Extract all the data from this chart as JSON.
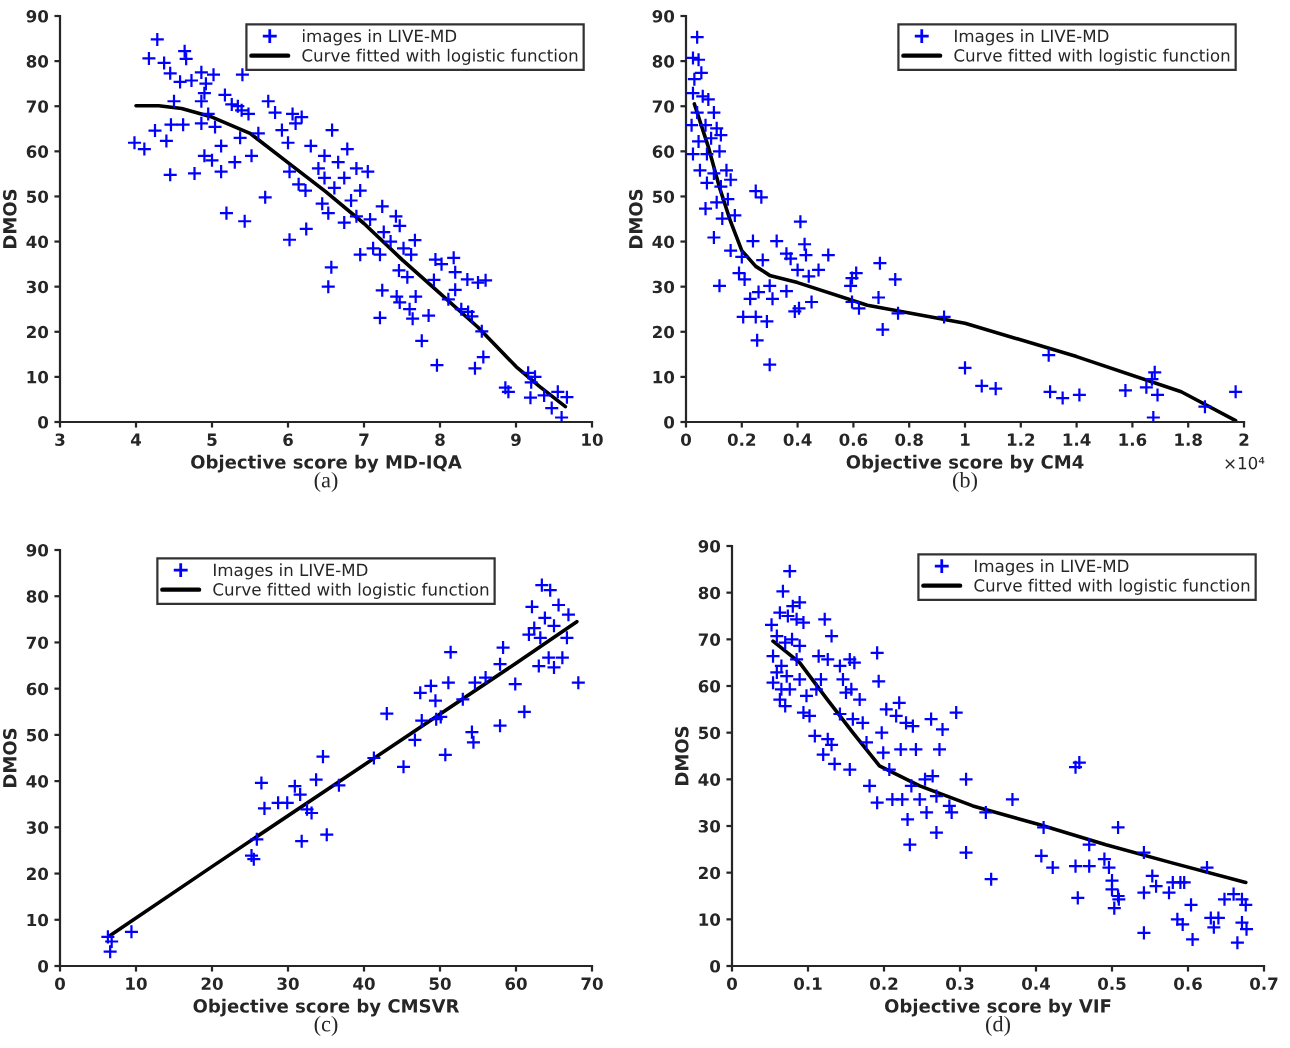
{
  "chart_data": [
    {
      "type": "scatter",
      "xlabel": "Objective score by MD-IQA",
      "ylabel": "DMOS",
      "xlim": [
        3,
        10
      ],
      "xticks": [
        3,
        4,
        5,
        6,
        7,
        8,
        9,
        10
      ],
      "ylim": [
        0,
        90
      ],
      "yticks": [
        0,
        10,
        20,
        30,
        40,
        50,
        60,
        70,
        80,
        90
      ],
      "legend": "top right",
      "grid": false,
      "annotations": [
        "(a)"
      ],
      "series": [
        {
          "name": "images in LIVE-MD",
          "color": "#0000ff",
          "marker": "cross",
          "x": [
            4.28,
            4.17,
            4.37,
            4.64,
            4.66,
            4.58,
            4.45,
            4.73,
            4.86,
            5.02,
            4.92,
            4.5,
            4.9,
            4.86,
            3.98,
            4.11,
            4.25,
            4.4,
            4.46,
            4.62,
            4.45,
            4.77,
            4.86,
            4.95,
            5.04,
            4.9,
            5.0,
            5.12,
            5.12,
            5.19,
            5.43,
            5.17,
            5.26,
            5.34,
            5.4,
            5.39,
            5.48,
            5.37,
            5.52,
            5.3,
            5.61,
            5.7,
            5.74,
            5.83,
            5.92,
            6.0,
            6.02,
            6.06,
            6.1,
            6.02,
            6.18,
            6.23,
            6.3,
            6.14,
            6.24,
            6.4,
            6.48,
            6.45,
            6.58,
            6.48,
            6.66,
            6.61,
            6.53,
            6.57,
            6.53,
            6.74,
            6.78,
            6.83,
            6.9,
            6.95,
            6.74,
            6.9,
            7.05,
            6.95,
            7.08,
            7.21,
            7.12,
            7.24,
            7.26,
            7.35,
            7.42,
            7.47,
            7.21,
            7.24,
            7.43,
            7.52,
            7.46,
            7.57,
            7.47,
            7.6,
            7.62,
            7.68,
            7.64,
            7.67,
            7.76,
            7.94,
            8.02,
            7.92,
            7.96,
            7.85,
            8.11,
            8.18,
            8.2,
            8.2,
            8.28,
            8.37,
            8.42,
            8.36,
            8.5,
            8.55,
            8.57,
            8.46,
            8.86,
            8.9,
            9.16,
            9.2,
            9.19,
            9.37,
            9.47,
            9.55,
            9.6,
            9.67,
            9.25,
            8.6
          ],
          "values": [
            84.8,
            80.6,
            79.6,
            82.2,
            80.5,
            75.4,
            77.3,
            75.7,
            77.5,
            77,
            75,
            71.1,
            72.9,
            71.1,
            61.9,
            60.5,
            64.6,
            62.3,
            65.9,
            65.9,
            54.8,
            55.1,
            66.2,
            68.3,
            65.4,
            59,
            58,
            55.5,
            61.2,
            46.3,
            44.5,
            72.5,
            70.4,
            70,
            77,
            69.1,
            68.3,
            63,
            59,
            57.6,
            64,
            49.8,
            71.1,
            68.6,
            64.7,
            61.9,
            40.4,
            68.3,
            66.2,
            55.5,
            67.6,
            51.3,
            61.2,
            52.7,
            42.8,
            56.2,
            54.1,
            48.4,
            64.7,
            59,
            57.6,
            51.9,
            46.3,
            34.3,
            30,
            54.1,
            60.5,
            49.1,
            56.2,
            51.3,
            44.2,
            45.6,
            55.5,
            37.1,
            44.9,
            37.1,
            38.5,
            47.8,
            42.1,
            40,
            45.6,
            43.5,
            23.1,
            29.2,
            27.8,
            38.5,
            33.6,
            32.1,
            26.5,
            25,
            37.1,
            27.8,
            22.9,
            40.3,
            18,
            36,
            35,
            31.5,
            12.6,
            23.6,
            27.2,
            36.4,
            33.2,
            29.3,
            25,
            24.4,
            23.4,
            31.6,
            30.9,
            20.1,
            14.4,
            11.9,
            7.6,
            6.7,
            10.9,
            8.8,
            5.4,
            5.9,
            3.1,
            6.7,
            1,
            5.5,
            10,
            31.4
          ]
        },
        {
          "type": "line",
          "name": "Curve fitted with logistic function",
          "color": "#000000",
          "marker": "none",
          "line_style": "solid",
          "x": [
            4.0,
            4.3,
            4.6,
            5.0,
            5.5,
            6.0,
            6.5,
            7.0,
            7.5,
            8.0,
            8.5,
            9.0,
            9.3,
            9.65
          ],
          "values": [
            70.1,
            70.1,
            69.5,
            67.6,
            64,
            57.5,
            51,
            44,
            36,
            28.5,
            21,
            12.3,
            8,
            3.4
          ]
        }
      ]
    },
    {
      "type": "scatter",
      "xlabel": "Objective score by CM4",
      "ylabel": "DMOS",
      "xlim": [
        0,
        2
      ],
      "xticks": [
        0,
        0.2,
        0.4,
        0.6,
        0.8,
        1,
        1.2,
        1.4,
        1.6,
        1.8,
        2
      ],
      "ylim": [
        0,
        90
      ],
      "yticks": [
        0,
        10,
        20,
        30,
        40,
        50,
        60,
        70,
        80,
        90
      ],
      "legend": "top right",
      "grid": false,
      "annotations": [
        "×10⁴",
        "(b)"
      ],
      "series": [
        {
          "name": "Images in LIVE-MD",
          "color": "#0000ff",
          "marker": "cross",
          "x": [
            0.04,
            0.025,
            0.045,
            0.03,
            0.055,
            0.025,
            0.06,
            0.08,
            0.04,
            0.1,
            0.02,
            0.07,
            0.11,
            0.045,
            0.09,
            0.125,
            0.025,
            0.075,
            0.12,
            0.05,
            0.1,
            0.145,
            0.075,
            0.125,
            0.16,
            0.07,
            0.11,
            0.15,
            0.1,
            0.13,
            0.175,
            0.16,
            0.12,
            0.2,
            0.19,
            0.21,
            0.205,
            0.25,
            0.23,
            0.26,
            0.3,
            0.25,
            0.27,
            0.24,
            0.275,
            0.255,
            0.3,
            0.29,
            0.31,
            0.325,
            0.36,
            0.375,
            0.36,
            0.39,
            0.405,
            0.41,
            0.425,
            0.43,
            0.44,
            0.45,
            0.4,
            0.475,
            0.51,
            0.59,
            0.595,
            0.61,
            0.595,
            0.62,
            0.695,
            0.69,
            0.705,
            0.75,
            0.76,
            0.925,
            1.0,
            1.06,
            1.11,
            1.3,
            1.305,
            1.35,
            1.41,
            1.575,
            1.65,
            1.67,
            1.68,
            1.675,
            1.69,
            1.86,
            1.97
          ],
          "values": [
            85.3,
            80.7,
            80.3,
            76,
            77.4,
            72.9,
            72.2,
            71.5,
            68.6,
            68.6,
            65.8,
            65.8,
            65.1,
            62.2,
            62.9,
            63.6,
            59.4,
            59.4,
            60,
            55.8,
            55.1,
            55.8,
            53,
            52.2,
            53.7,
            47.3,
            48.7,
            49.4,
            40.9,
            45.1,
            45.8,
            38,
            30.2,
            36.6,
            33,
            31.6,
            23.3,
            23.3,
            27.3,
            28.8,
            30.2,
            51.2,
            49.8,
            40.1,
            35.9,
            18.1,
            12.7,
            22.3,
            27.3,
            40.1,
            37.3,
            36.2,
            29,
            24.5,
            25.2,
            44.4,
            39.4,
            37,
            32.3,
            26.6,
            33.7,
            33.7,
            37,
            30.2,
            31.9,
            33,
            26.6,
            25.2,
            35.2,
            27.6,
            20.5,
            31.6,
            24.1,
            23.3,
            12,
            8,
            7.4,
            14.8,
            6.7,
            5.3,
            6,
            7,
            7.7,
            9.5,
            11,
            1,
            6,
            3.4,
            6.7
          ]
        },
        {
          "type": "line",
          "name": "Curve fitted with logistic function",
          "color": "#000000",
          "marker": "none",
          "line_style": "solid",
          "x": [
            0.03,
            0.08,
            0.12,
            0.16,
            0.2,
            0.25,
            0.3,
            0.4,
            0.65,
            1.0,
            1.4,
            1.775,
            1.97
          ],
          "values": [
            70.5,
            61,
            52,
            44.4,
            38,
            34.5,
            32.5,
            30.9,
            25.9,
            21.9,
            14.5,
            6.7,
            0.3
          ]
        }
      ]
    },
    {
      "type": "scatter",
      "xlabel": "Objective score by CMSVR",
      "ylabel": "DMOS",
      "xlim": [
        0,
        70
      ],
      "xticks": [
        0,
        10,
        20,
        30,
        40,
        50,
        60,
        70
      ],
      "ylim": [
        0,
        90
      ],
      "yticks": [
        0,
        10,
        20,
        30,
        40,
        50,
        60,
        70,
        80,
        90
      ],
      "legend": "top",
      "grid": false,
      "annotations": [
        "(c)"
      ],
      "series": [
        {
          "name": "Images in LIVE-MD",
          "color": "#0000ff",
          "marker": "cross",
          "x": [
            6.3,
            6.6,
            6.8,
            9.4,
            25.2,
            25.5,
            25.9,
            26.5,
            26.9,
            28.7,
            29.9,
            30.9,
            31.6,
            31.8,
            32.5,
            33.1,
            33.7,
            34.6,
            35.1,
            36.7,
            41.3,
            43,
            45.2,
            46.7,
            47.4,
            47.6,
            48.8,
            49.4,
            49.5,
            50.1,
            50.7,
            51.1,
            51.4,
            53,
            54.2,
            54.4,
            54.6,
            56,
            57.9,
            57.9,
            58.3,
            59.9,
            61.1,
            61.7,
            62.1,
            62.4,
            63,
            63.2,
            63.4,
            63.8,
            64.5,
            64.3,
            65,
            65,
            65.6,
            66.1,
            66.7,
            66.9,
            68.2
          ],
          "values": [
            6.3,
            3.1,
            5.3,
            7.4,
            23.9,
            23.1,
            27.4,
            39.6,
            34.1,
            35.3,
            35.3,
            38.9,
            37.1,
            27,
            33.9,
            33.1,
            40.3,
            45.3,
            28.4,
            39.1,
            45,
            54.6,
            43.1,
            48.9,
            59.1,
            53.1,
            60.6,
            57.4,
            53.4,
            53.9,
            45.7,
            61.3,
            67.9,
            57.7,
            50.6,
            48.4,
            61.3,
            62.4,
            52,
            65.3,
            68.9,
            61,
            55,
            71.7,
            77.7,
            73.1,
            64.9,
            71,
            82.4,
            75.3,
            81.3,
            66.7,
            64.6,
            73.6,
            78.1,
            66.7,
            71,
            76,
            61.3
          ]
        },
        {
          "type": "line",
          "name": "Curve fitted with logistic function",
          "color": "#000000",
          "marker": "none",
          "line_style": "solid",
          "x": [
            6.5,
            20,
            40,
            60,
            68
          ],
          "values": [
            6.5,
            21.5,
            43.5,
            65.5,
            74.5
          ]
        }
      ]
    },
    {
      "type": "scatter",
      "xlabel": "Objective score by VIF",
      "ylabel": "DMOS",
      "xlim": [
        0,
        0.7
      ],
      "xticks": [
        0,
        0.1,
        0.2,
        0.3,
        0.4,
        0.5,
        0.6,
        0.7
      ],
      "ylim": [
        0,
        90
      ],
      "yticks": [
        0,
        10,
        20,
        30,
        40,
        50,
        60,
        70,
        80,
        90
      ],
      "legend": "top right",
      "grid": false,
      "annotations": [
        "(d)"
      ],
      "series": [
        {
          "name": "Images in LIVE-MD",
          "color": "#0000ff",
          "marker": "cross",
          "x": [
            0.076,
            0.067,
            0.052,
            0.063,
            0.0735,
            0.08,
            0.089,
            0.085,
            0.094,
            0.059,
            0.07,
            0.079,
            0.089,
            0.085,
            0.054,
            0.065,
            0.059,
            0.072,
            0.054,
            0.065,
            0.076,
            0.07,
            0.063,
            0.089,
            0.098,
            0.102,
            0.094,
            0.122,
            0.131,
            0.126,
            0.114,
            0.117,
            0.111,
            0.109,
            0.12,
            0.126,
            0.131,
            0.135,
            0.142,
            0.146,
            0.15,
            0.142,
            0.155,
            0.161,
            0.157,
            0.159,
            0.155,
            0.168,
            0.172,
            0.177,
            0.181,
            0.191,
            0.193,
            0.191,
            0.197,
            0.199,
            0.203,
            0.207,
            0.211,
            0.216,
            0.22,
            0.222,
            0.224,
            0.229,
            0.231,
            0.234,
            0.238,
            0.236,
            0.242,
            0.247,
            0.254,
            0.256,
            0.262,
            0.264,
            0.269,
            0.269,
            0.273,
            0.277,
            0.286,
            0.295,
            0.289,
            0.308,
            0.308,
            0.334,
            0.341,
            0.369,
            0.407,
            0.41,
            0.422,
            0.452,
            0.457,
            0.452,
            0.455,
            0.47,
            0.47,
            0.49,
            0.496,
            0.5,
            0.5,
            0.508,
            0.509,
            0.503,
            0.508,
            0.542,
            0.542,
            0.542,
            0.553,
            0.558,
            0.575,
            0.58,
            0.586,
            0.59,
            0.595,
            0.593,
            0.604,
            0.606,
            0.625,
            0.63,
            0.634,
            0.64,
            0.648,
            0.66,
            0.665,
            0.671,
            0.676,
            0.671,
            0.677
          ],
          "values": [
            84.6,
            80.3,
            73.1,
            75.7,
            75,
            77.1,
            77.9,
            74.3,
            73.6,
            70.7,
            69.3,
            70,
            68.6,
            65.7,
            66.4,
            64.3,
            62.9,
            62.1,
            60.7,
            59.3,
            59.3,
            55.7,
            57.1,
            61.4,
            57.9,
            53.6,
            54.3,
            74.3,
            70.7,
            65.7,
            66.4,
            61.4,
            59.3,
            49.3,
            45.3,
            48.6,
            47.4,
            43.3,
            64.3,
            61.4,
            58.6,
            54,
            65.7,
            65,
            59.3,
            52.9,
            42.1,
            57.1,
            52.1,
            47.9,
            38.6,
            67.1,
            61,
            35,
            50,
            45.7,
            55,
            42.1,
            35.7,
            53.6,
            56.4,
            46.4,
            35.7,
            52.1,
            31.4,
            26,
            51.4,
            38.6,
            46.4,
            35.7,
            40,
            32.9,
            52.9,
            40.7,
            36.4,
            28.6,
            46.4,
            50.7,
            34.3,
            54.3,
            32.9,
            40,
            24.3,
            32.9,
            18.6,
            35.7,
            23.6,
            29.7,
            21.1,
            42.6,
            43.6,
            21.4,
            14.6,
            26,
            21.4,
            22.9,
            21.1,
            18.3,
            16.4,
            15,
            14.3,
            12.4,
            29.7,
            15.7,
            7.1,
            24.3,
            19.3,
            17.1,
            15.7,
            17.9,
            10,
            17.9,
            17.9,
            8.9,
            13.1,
            5.7,
            21.1,
            10.3,
            8.3,
            10.3,
            14.3,
            15.4,
            5,
            14.3,
            13.1,
            9.3,
            7.9
          ]
        },
        {
          "type": "line",
          "name": "Curve fitted with logistic function",
          "color": "#000000",
          "marker": "none",
          "line_style": "solid",
          "x": [
            0.054,
            0.089,
            0.124,
            0.159,
            0.194,
            0.247,
            0.317,
            0.404,
            0.492,
            0.579,
            0.676
          ],
          "values": [
            69.6,
            65,
            57.4,
            50,
            42.9,
            38.6,
            34.3,
            30.3,
            26,
            22.1,
            17.9
          ]
        }
      ]
    }
  ]
}
